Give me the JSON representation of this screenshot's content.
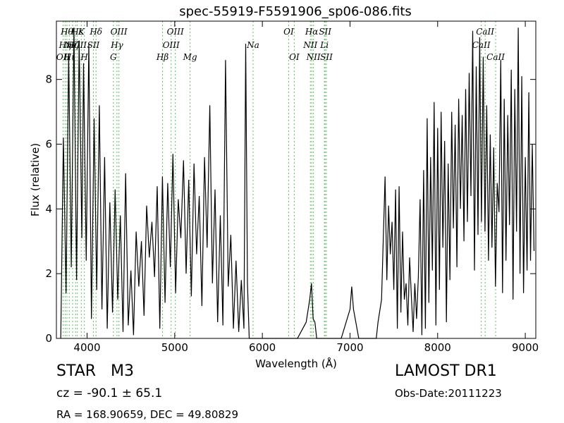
{
  "header": {
    "title": "spec-55919-F5591906_sp06-086.fits"
  },
  "info": {
    "class_label": "STAR   M3",
    "redshift": "cz = -90.1 ± 65.1",
    "coords": "RA = 168.90659, DEC = 49.80829",
    "survey": "LAMOST DR1",
    "obs_date": "Obs-Date:20111223"
  },
  "chart_data": {
    "type": "line",
    "title": "spec-55919-F5591906_sp06-086.fits",
    "xlabel": "Wavelength (Å)",
    "ylabel": "Flux (relative)",
    "xlim": [
      3650,
      9120
    ],
    "ylim": [
      0,
      9.8
    ],
    "xticks": [
      4000,
      5000,
      6000,
      7000,
      8000,
      9000
    ],
    "yticks": [
      0,
      2,
      4,
      6,
      8
    ],
    "grid": false,
    "line_color": "#000000",
    "marker_color": "#5fbf5f",
    "series": [
      {
        "x": [
          3700,
          3730,
          3760,
          3790,
          3820,
          3850,
          3880,
          3910,
          3940,
          3960,
          3990,
          4020,
          4050,
          4080,
          4110,
          4140,
          4170,
          4200,
          4230,
          4260,
          4290,
          4320,
          4350,
          4380,
          4410,
          4440,
          4470,
          4500,
          4530,
          4560,
          4590,
          4620,
          4650,
          4680,
          4710,
          4740,
          4770,
          4800,
          4830,
          4860,
          4890,
          4920,
          4950,
          4980,
          5010,
          5040,
          5070,
          5100,
          5130,
          5160,
          5190,
          5220,
          5250,
          5280,
          5310,
          5340,
          5370,
          5400,
          5430,
          5460,
          5490,
          5520,
          5550,
          5580,
          5610,
          5640,
          5670,
          5700,
          5730,
          5760,
          5790,
          5810,
          5830,
          5850,
          5880,
          6000,
          6200,
          6400,
          6500,
          6540,
          6560,
          6580,
          6600,
          6620,
          6700,
          6900,
          7000,
          7020,
          7040,
          7100,
          7300,
          7320,
          7360,
          7400,
          7420,
          7440,
          7460,
          7480,
          7500,
          7520,
          7540,
          7560,
          7580,
          7600,
          7620,
          7640,
          7660,
          7680,
          7700,
          7720,
          7740,
          7760,
          7780,
          7800,
          7820,
          7840,
          7860,
          7880,
          7900,
          7920,
          7940,
          7960,
          7980,
          8000,
          8020,
          8040,
          8060,
          8080,
          8100,
          8120,
          8140,
          8160,
          8180,
          8200,
          8220,
          8240,
          8260,
          8280,
          8300,
          8320,
          8340,
          8360,
          8380,
          8400,
          8420,
          8440,
          8460,
          8480,
          8500,
          8520,
          8540,
          8560,
          8580,
          8600,
          8620,
          8640,
          8660,
          8680,
          8700,
          8720,
          8740,
          8760,
          8780,
          8800,
          8820,
          8840,
          8860,
          8880,
          8900,
          8920,
          8940,
          8960,
          8980,
          9000,
          9020,
          9040,
          9060,
          9080,
          9100
        ],
        "y": [
          0,
          6.2,
          1.4,
          8.8,
          2.2,
          9.6,
          1.8,
          9.2,
          3.1,
          8.5,
          2.4,
          9.1,
          0.6,
          6.8,
          1.5,
          7.2,
          0.9,
          5.6,
          0.3,
          4.2,
          0.8,
          4.6,
          1.2,
          3.8,
          0.2,
          5.1,
          0.4,
          2.1,
          0.1,
          3.3,
          1.6,
          3.0,
          0.7,
          4.1,
          2.5,
          3.6,
          1.9,
          4.7,
          0.3,
          5.0,
          1.1,
          4.8,
          2.2,
          5.7,
          1.4,
          4.3,
          3.1,
          5.5,
          2.0,
          4.9,
          1.3,
          5.4,
          2.6,
          4.4,
          1.0,
          5.6,
          2.8,
          7.2,
          1.7,
          4.6,
          0.5,
          3.8,
          0.4,
          8.6,
          1.6,
          3.2,
          0.3,
          2.4,
          0.2,
          1.8,
          0.3,
          9.1,
          1.7,
          0,
          0,
          0,
          0,
          0,
          0.5,
          1.2,
          1.7,
          0.6,
          0.5,
          0,
          0,
          0,
          0.9,
          1.6,
          0.9,
          0,
          0,
          0.5,
          1.2,
          5.0,
          1.8,
          4.1,
          2.6,
          3.6,
          1.5,
          4.6,
          0.3,
          4.7,
          0.8,
          3.3,
          1.2,
          1.7,
          0.4,
          2.5,
          1.3,
          0.2,
          1.7,
          0.6,
          1.9,
          4.3,
          0.1,
          5.2,
          0.3,
          6.8,
          1.1,
          5.6,
          2.1,
          7.3,
          0.4,
          6.5,
          1.5,
          7.0,
          2.8,
          6.1,
          0.5,
          5.4,
          1.8,
          7.0,
          3.4,
          6.6,
          2.2,
          7.4,
          4.0,
          6.9,
          3.0,
          7.7,
          3.6,
          8.2,
          4.4,
          9.5,
          2.1,
          8.4,
          3.2,
          9.3,
          3.6,
          8.7,
          3.3,
          7.2,
          2.4,
          6.3,
          2.8,
          5.9,
          1.6,
          4.8,
          3.9,
          8.6,
          1.4,
          7.4,
          2.4,
          6.9,
          3.5,
          8.3,
          1.2,
          7.7,
          3.3,
          9.6,
          2.0,
          8.1,
          1.4,
          5.6,
          2.1,
          7.6,
          2.4,
          6.0,
          2.7
        ]
      }
    ],
    "lines": [
      {
        "wave": 3727,
        "label": "OII",
        "row": 2
      },
      {
        "wave": 3750,
        "label": "Hη",
        "row": 1
      },
      {
        "wave": 3770,
        "label": "Hθ",
        "row": 0
      },
      {
        "wave": 3797,
        "label": "Hι",
        "row": 2
      },
      {
        "wave": 3835,
        "label": "Hζ",
        "row": 1
      },
      {
        "wave": 3869,
        "label": "NeIII",
        "row": 1
      },
      {
        "wave": 3889,
        "label": "Hε",
        "row": 0
      },
      {
        "wave": 3934,
        "label": "K",
        "row": 0
      },
      {
        "wave": 3969,
        "label": "H",
        "row": 2
      },
      {
        "wave": 4072,
        "label": "SII",
        "row": 1
      },
      {
        "wave": 4102,
        "label": "Hδ",
        "row": 0
      },
      {
        "wave": 4300,
        "label": "G",
        "row": 2
      },
      {
        "wave": 4341,
        "label": "Hγ",
        "row": 1
      },
      {
        "wave": 4363,
        "label": "OIII",
        "row": 0
      },
      {
        "wave": 4861,
        "label": "Hβ",
        "row": 2
      },
      {
        "wave": 4959,
        "label": "OIII",
        "row": 1
      },
      {
        "wave": 5007,
        "label": "OIII",
        "row": 0
      },
      {
        "wave": 5175,
        "label": "Mg",
        "row": 2
      },
      {
        "wave": 5894,
        "label": "Na",
        "row": 1
      },
      {
        "wave": 6300,
        "label": "OI",
        "row": 0
      },
      {
        "wave": 6364,
        "label": "OI",
        "row": 2
      },
      {
        "wave": 6548,
        "label": "NII",
        "row": 1
      },
      {
        "wave": 6563,
        "label": "Hα",
        "row": 0
      },
      {
        "wave": 6583,
        "label": "NII",
        "row": 2
      },
      {
        "wave": 6708,
        "label": "Li",
        "row": 1
      },
      {
        "wave": 6716,
        "label": "SII",
        "row": 0
      },
      {
        "wave": 6731,
        "label": "SII",
        "row": 2
      },
      {
        "wave": 8498,
        "label": "CaII",
        "row": 1
      },
      {
        "wave": 8542,
        "label": "CaII",
        "row": 0
      },
      {
        "wave": 8662,
        "label": "CaII",
        "row": 2
      }
    ]
  }
}
